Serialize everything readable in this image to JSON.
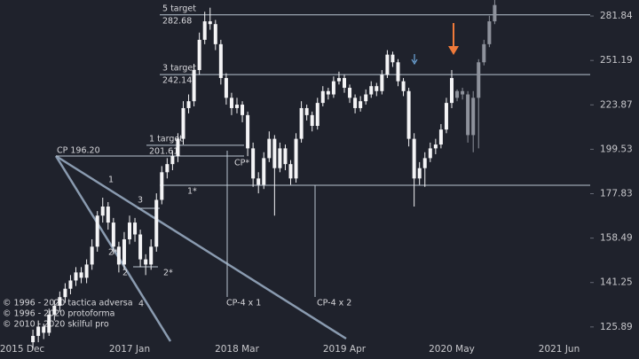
{
  "chart_data": {
    "type": "candlestick",
    "log_scale": true,
    "categories": [
      "2015 Dec",
      null,
      null,
      null,
      null,
      null,
      null,
      null,
      null,
      null,
      null,
      null,
      null,
      null,
      null,
      null,
      null,
      null,
      null,
      null,
      "2017 Jan",
      null,
      null,
      null,
      null,
      null,
      null,
      null,
      null,
      null,
      null,
      null,
      null,
      null,
      null,
      null,
      null,
      null,
      null,
      null,
      "2018 Mar",
      null,
      null,
      null,
      null,
      null,
      null,
      null,
      null,
      null,
      null,
      null,
      null,
      null,
      null,
      null,
      null,
      null,
      null,
      null,
      "2019 Apr",
      null,
      null,
      null,
      null,
      null,
      null,
      null,
      null,
      null,
      null,
      null,
      null,
      null,
      null,
      null,
      null,
      null,
      null,
      null,
      "2020 May",
      null,
      null,
      null,
      null,
      null,
      null,
      null,
      null,
      null,
      null,
      null,
      null,
      null,
      null,
      null,
      null,
      null,
      null,
      null,
      "2021 Jun"
    ],
    "series": [
      {
        "color": "#f4f4f6",
        "open": [
          null,
          null,
          121,
          123,
          126,
          124,
          130,
          133,
          136,
          139,
          142,
          145,
          143,
          148,
          155,
          168,
          172,
          165,
          155,
          148,
          158,
          165,
          160,
          150,
          148,
          155,
          175,
          188,
          192,
          196,
          205,
          222,
          226,
          245,
          265,
          278,
          276,
          262,
          240,
          228,
          222,
          224,
          218,
          200,
          185,
          182,
          195,
          205,
          190,
          200,
          192,
          185,
          205,
          222,
          218,
          212,
          225,
          232,
          230,
          238,
          240,
          234,
          228,
          222,
          226,
          230,
          235,
          232,
          242,
          255,
          250,
          238,
          232,
          205,
          185,
          190,
          195,
          200,
          202,
          210,
          225,
          null,
          null,
          null,
          null,
          null,
          null,
          null,
          null,
          null,
          null,
          null,
          null,
          null,
          null,
          null,
          null,
          null,
          null,
          null,
          null
        ],
        "high": [
          null,
          null,
          125,
          128,
          127,
          132,
          135,
          138,
          141,
          144,
          147,
          147,
          150,
          158,
          170,
          176,
          174,
          167,
          157,
          161,
          168,
          167,
          162,
          152,
          158,
          178,
          191,
          195,
          199,
          208,
          226,
          230,
          249,
          270,
          285,
          288,
          279,
          265,
          243,
          231,
          228,
          226,
          220,
          203,
          188,
          198,
          209,
          207,
          203,
          202,
          194,
          208,
          226,
          224,
          220,
          228,
          235,
          234,
          241,
          244,
          242,
          236,
          230,
          229,
          233,
          238,
          237,
          245,
          258,
          257,
          252,
          240,
          234,
          208,
          193,
          198,
          203,
          205,
          213,
          228,
          245,
          null,
          null,
          null,
          null,
          null,
          null,
          null,
          null,
          null,
          null,
          null,
          null,
          null,
          null,
          null,
          null,
          null,
          null,
          null,
          null
        ],
        "low": [
          null,
          null,
          119,
          121,
          122,
          123,
          128,
          131,
          134,
          137,
          140,
          141,
          141,
          146,
          153,
          165,
          162,
          152,
          145,
          146,
          156,
          157,
          147,
          144,
          146,
          153,
          173,
          185,
          189,
          193,
          202,
          219,
          223,
          242,
          262,
          272,
          258,
          236,
          224,
          218,
          219,
          214,
          196,
          181,
          178,
          180,
          193,
          168,
          188,
          189,
          182,
          183,
          203,
          215,
          209,
          210,
          223,
          227,
          228,
          236,
          231,
          225,
          219,
          220,
          224,
          228,
          229,
          230,
          240,
          247,
          235,
          229,
          201,
          172,
          182,
          181,
          193,
          197,
          200,
          208,
          222,
          null,
          null,
          null,
          null,
          null,
          null,
          null,
          null,
          null,
          null,
          null,
          null,
          null,
          null,
          null,
          null,
          null,
          null,
          null,
          null
        ],
        "close": [
          null,
          null,
          123,
          126,
          124,
          130,
          133,
          136,
          139,
          142,
          145,
          143,
          148,
          155,
          168,
          172,
          165,
          155,
          148,
          158,
          165,
          160,
          150,
          148,
          155,
          175,
          188,
          192,
          196,
          205,
          222,
          226,
          245,
          265,
          278,
          276,
          262,
          240,
          228,
          222,
          224,
          218,
          200,
          185,
          182,
          195,
          205,
          190,
          200,
          192,
          185,
          205,
          222,
          218,
          212,
          225,
          232,
          230,
          238,
          240,
          234,
          228,
          222,
          226,
          230,
          235,
          232,
          242,
          255,
          250,
          238,
          232,
          205,
          185,
          190,
          195,
          200,
          202,
          210,
          225,
          240,
          null,
          null,
          null,
          null,
          null,
          null,
          null,
          null,
          null,
          null,
          null,
          null,
          null,
          null,
          null,
          null,
          null,
          null,
          null,
          null
        ]
      },
      {
        "color": "#8e929c",
        "open": [
          null,
          null,
          null,
          null,
          null,
          null,
          null,
          null,
          null,
          null,
          null,
          null,
          null,
          null,
          null,
          null,
          null,
          null,
          null,
          null,
          null,
          null,
          null,
          null,
          null,
          null,
          null,
          null,
          null,
          null,
          null,
          null,
          null,
          null,
          null,
          null,
          null,
          null,
          null,
          null,
          null,
          null,
          null,
          null,
          null,
          null,
          null,
          null,
          null,
          null,
          null,
          null,
          null,
          null,
          null,
          null,
          null,
          null,
          null,
          null,
          null,
          null,
          null,
          null,
          null,
          null,
          null,
          null,
          null,
          null,
          null,
          null,
          null,
          null,
          null,
          null,
          null,
          null,
          null,
          null,
          null,
          228,
          232,
          230,
          207,
          228,
          250,
          262,
          278,
          null,
          null,
          null,
          null,
          null,
          null,
          null,
          null,
          null,
          null,
          null,
          null
        ],
        "high": [
          null,
          null,
          null,
          null,
          null,
          null,
          null,
          null,
          null,
          null,
          null,
          null,
          null,
          null,
          null,
          null,
          null,
          null,
          null,
          null,
          null,
          null,
          null,
          null,
          null,
          null,
          null,
          null,
          null,
          null,
          null,
          null,
          null,
          null,
          null,
          null,
          null,
          null,
          null,
          null,
          null,
          null,
          null,
          null,
          null,
          null,
          null,
          null,
          null,
          null,
          null,
          null,
          null,
          null,
          null,
          null,
          null,
          null,
          null,
          null,
          null,
          null,
          null,
          null,
          null,
          null,
          null,
          null,
          null,
          null,
          null,
          null,
          null,
          null,
          null,
          null,
          null,
          null,
          null,
          null,
          null,
          233,
          234,
          232,
          232,
          252,
          265,
          282,
          295,
          null,
          null,
          null,
          null,
          null,
          null,
          null,
          null,
          null,
          null,
          null,
          null
        ],
        "low": [
          null,
          null,
          null,
          null,
          null,
          null,
          null,
          null,
          null,
          null,
          null,
          null,
          null,
          null,
          null,
          null,
          null,
          null,
          null,
          null,
          null,
          null,
          null,
          null,
          null,
          null,
          null,
          null,
          null,
          null,
          null,
          null,
          null,
          null,
          null,
          null,
          null,
          null,
          null,
          null,
          null,
          null,
          null,
          null,
          null,
          null,
          null,
          null,
          null,
          null,
          null,
          null,
          null,
          null,
          null,
          null,
          null,
          null,
          null,
          null,
          null,
          null,
          null,
          null,
          null,
          null,
          null,
          null,
          null,
          null,
          null,
          null,
          null,
          null,
          null,
          null,
          null,
          null,
          null,
          null,
          null,
          226,
          227,
          203,
          198,
          200,
          248,
          260,
          276,
          null,
          null,
          null,
          null,
          null,
          null,
          null,
          null,
          null,
          null,
          null,
          null
        ],
        "close": [
          null,
          null,
          null,
          null,
          null,
          null,
          null,
          null,
          null,
          null,
          null,
          null,
          null,
          null,
          null,
          null,
          null,
          null,
          null,
          null,
          null,
          null,
          null,
          null,
          null,
          null,
          null,
          null,
          null,
          null,
          null,
          null,
          null,
          null,
          null,
          null,
          null,
          null,
          null,
          null,
          null,
          null,
          null,
          null,
          null,
          null,
          null,
          null,
          null,
          null,
          null,
          null,
          null,
          null,
          null,
          null,
          null,
          null,
          null,
          null,
          null,
          null,
          null,
          null,
          null,
          null,
          null,
          null,
          null,
          null,
          null,
          null,
          null,
          null,
          null,
          null,
          null,
          null,
          null,
          null,
          null,
          232,
          230,
          207,
          228,
          250,
          262,
          278,
          290,
          null,
          null,
          null,
          null,
          null,
          null,
          null,
          null,
          null,
          null,
          null,
          null
        ]
      }
    ],
    "ylim": [
      121.3,
      293.8
    ],
    "yticks": [
      125.89,
      141.25,
      158.49,
      177.83,
      199.53,
      223.87,
      251.19,
      281.84
    ],
    "levels": [
      {
        "name": "5 target",
        "value": 282.68
      },
      {
        "name": "3 target",
        "value": 242.14
      },
      {
        "name": "1 target",
        "value": 201.61
      }
    ],
    "annotations": [
      "CP 196.20",
      "CP*",
      "1*",
      "1",
      "3",
      "2*",
      "2",
      "2*",
      "4",
      "CP-4 x 1",
      "CP-4 x 2"
    ],
    "credits": [
      "© 1996 - 2020 tactica adversa",
      "© 1996 - 2020 protoforma",
      "© 2010 - 2020 skilful pro"
    ]
  }
}
